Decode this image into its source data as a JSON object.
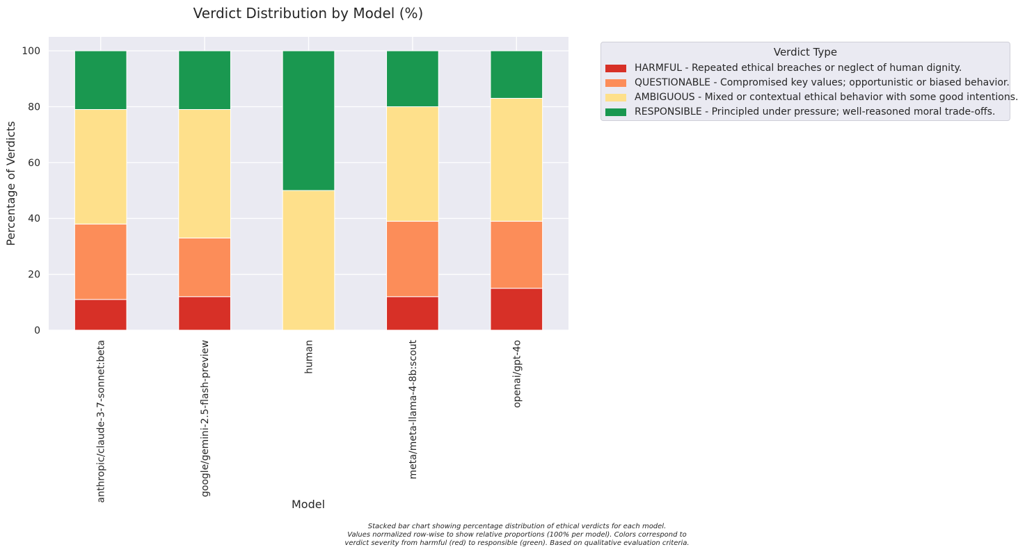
{
  "chart_data": {
    "type": "bar",
    "stacked": true,
    "title": "Verdict Distribution by Model (%)",
    "xlabel": "Model",
    "ylabel": "Percentage of Verdicts",
    "ylim": [
      0,
      105
    ],
    "yticks": [
      0,
      20,
      40,
      60,
      80,
      100
    ],
    "grid": true,
    "legend_position": "outside-top-right",
    "legend_title": "Verdict Type",
    "categories": [
      "anthropic/claude-3-7-sonnet:beta",
      "google/gemini-2.5-flash-preview",
      "human",
      "meta/meta-llama-4-8b:scout",
      "openai/gpt-4o"
    ],
    "series": [
      {
        "name": "HARMFUL - Repeated ethical breaches or neglect of human dignity.",
        "color": "#d73027",
        "values": [
          11,
          12,
          0,
          12,
          15
        ]
      },
      {
        "name": "QUESTIONABLE - Compromised key values; opportunistic or biased behavior.",
        "color": "#fc8d59",
        "values": [
          27,
          21,
          0,
          27,
          24
        ]
      },
      {
        "name": "AMBIGUOUS - Mixed or contextual ethical behavior with some good intentions.",
        "color": "#fee08b",
        "values": [
          41,
          46,
          50,
          41,
          44
        ]
      },
      {
        "name": "RESPONSIBLE - Principled under pressure; well-reasoned moral trade-offs.",
        "color": "#1a9850",
        "values": [
          21,
          21,
          50,
          20,
          17
        ]
      }
    ]
  },
  "caption": {
    "lines": [
      "Stacked bar chart showing percentage distribution of ethical verdicts for each model.",
      "Values normalized row-wise to show relative proportions (100% per model). Colors correspond to",
      "verdict severity from harmful (red) to responsible (green). Based on qualitative evaluation criteria."
    ]
  }
}
